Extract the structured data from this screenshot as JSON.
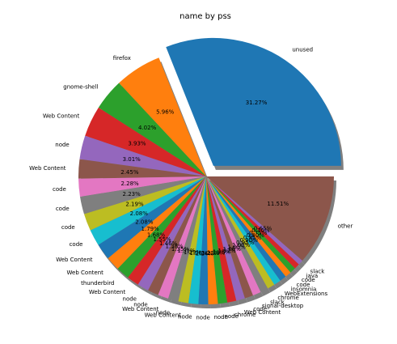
{
  "chart_data": {
    "type": "pie",
    "title": "name by pss",
    "shadow": true,
    "explode_first": true,
    "start_angle_deg": 0,
    "counterclockwise": true,
    "slices": [
      {
        "label": "unused",
        "pct": 31.27,
        "pct_text": "31.27%",
        "color": "#1f77b4"
      },
      {
        "label": "firefox",
        "pct": 5.96,
        "pct_text": "5.96%",
        "color": "#ff7f0e"
      },
      {
        "label": "gnome-shell",
        "pct": 4.02,
        "pct_text": "4.02%",
        "color": "#2ca02c"
      },
      {
        "label": "Web Content",
        "pct": 3.93,
        "pct_text": "3.93%",
        "color": "#d62728"
      },
      {
        "label": "node",
        "pct": 3.01,
        "pct_text": "3.01%",
        "color": "#9467bd"
      },
      {
        "label": "Web Content",
        "pct": 2.45,
        "pct_text": "2.45%",
        "color": "#8c564b"
      },
      {
        "label": "code",
        "pct": 2.28,
        "pct_text": "2.28%",
        "color": "#e377c2"
      },
      {
        "label": "code",
        "pct": 2.23,
        "pct_text": "2.23%",
        "color": "#7f7f7f"
      },
      {
        "label": "code",
        "pct": 2.19,
        "pct_text": "2.19%",
        "color": "#bcbd22"
      },
      {
        "label": "code",
        "pct": 2.08,
        "pct_text": "2.08%",
        "color": "#17becf"
      },
      {
        "label": "Web Content",
        "pct": 2.08,
        "pct_text": "2.08%",
        "color": "#1f77b4"
      },
      {
        "label": "Web Content",
        "pct": 1.79,
        "pct_text": "1.79%",
        "color": "#ff7f0e"
      },
      {
        "label": "thunderbird",
        "pct": 1.68,
        "pct_text": "1.68%",
        "color": "#2ca02c"
      },
      {
        "label": "Web Content",
        "pct": 1.55,
        "pct_text": "1.55%",
        "color": "#d62728"
      },
      {
        "label": "node",
        "pct": 1.46,
        "pct_text": "1.46%",
        "color": "#9467bd"
      },
      {
        "label": "node",
        "pct": 1.38,
        "pct_text": "1.38%",
        "color": "#8c564b"
      },
      {
        "label": "Web Content",
        "pct": 1.35,
        "pct_text": "1.35%",
        "color": "#e377c2"
      },
      {
        "label": "node",
        "pct": 1.31,
        "pct_text": "1.31%",
        "color": "#7f7f7f"
      },
      {
        "label": "Web Content",
        "pct": 1.29,
        "pct_text": "1.29%",
        "color": "#bcbd22"
      },
      {
        "label": "node",
        "pct": 1.26,
        "pct_text": "1.26%",
        "color": "#17becf"
      },
      {
        "label": "node",
        "pct": 1.24,
        "pct_text": "1.24%",
        "color": "#1f77b4"
      },
      {
        "label": "node",
        "pct": 1.22,
        "pct_text": "1.22%",
        "color": "#ff7f0e"
      },
      {
        "label": "node",
        "pct": 1.19,
        "pct_text": "1.19%",
        "color": "#2ca02c"
      },
      {
        "label": "chrome",
        "pct": 1.15,
        "pct_text": "1.15%",
        "color": "#d62728"
      },
      {
        "label": "Web Content",
        "pct": 1.12,
        "pct_text": "1.12%",
        "color": "#9467bd"
      },
      {
        "label": "code",
        "pct": 1.08,
        "pct_text": "1.08%",
        "color": "#8c564b"
      },
      {
        "label": "signal-desktop",
        "pct": 1.05,
        "pct_text": "1.05%",
        "color": "#e377c2"
      },
      {
        "label": "slack",
        "pct": 1.0,
        "pct_text": "1.00%",
        "color": "#7f7f7f"
      },
      {
        "label": "chrome",
        "pct": 0.95,
        "pct_text": "0.95%",
        "color": "#bcbd22"
      },
      {
        "label": "WebExtensions",
        "pct": 0.9,
        "pct_text": "0.90%",
        "color": "#17becf"
      },
      {
        "label": "insomnia",
        "pct": 0.85,
        "pct_text": "0.85%",
        "color": "#1f77b4"
      },
      {
        "label": "code",
        "pct": 0.8,
        "pct_text": "0.80%",
        "color": "#ff7f0e"
      },
      {
        "label": "code",
        "pct": 0.75,
        "pct_text": "0.75%",
        "color": "#2ca02c"
      },
      {
        "label": "java",
        "pct": 0.7,
        "pct_text": "0.70%",
        "color": "#d62728"
      },
      {
        "label": "slack",
        "pct": 0.65,
        "pct_text": "0.65%",
        "color": "#9467bd"
      },
      {
        "label": "other",
        "pct": 11.51,
        "pct_text": "11.51%",
        "color": "#8c564b"
      }
    ]
  }
}
